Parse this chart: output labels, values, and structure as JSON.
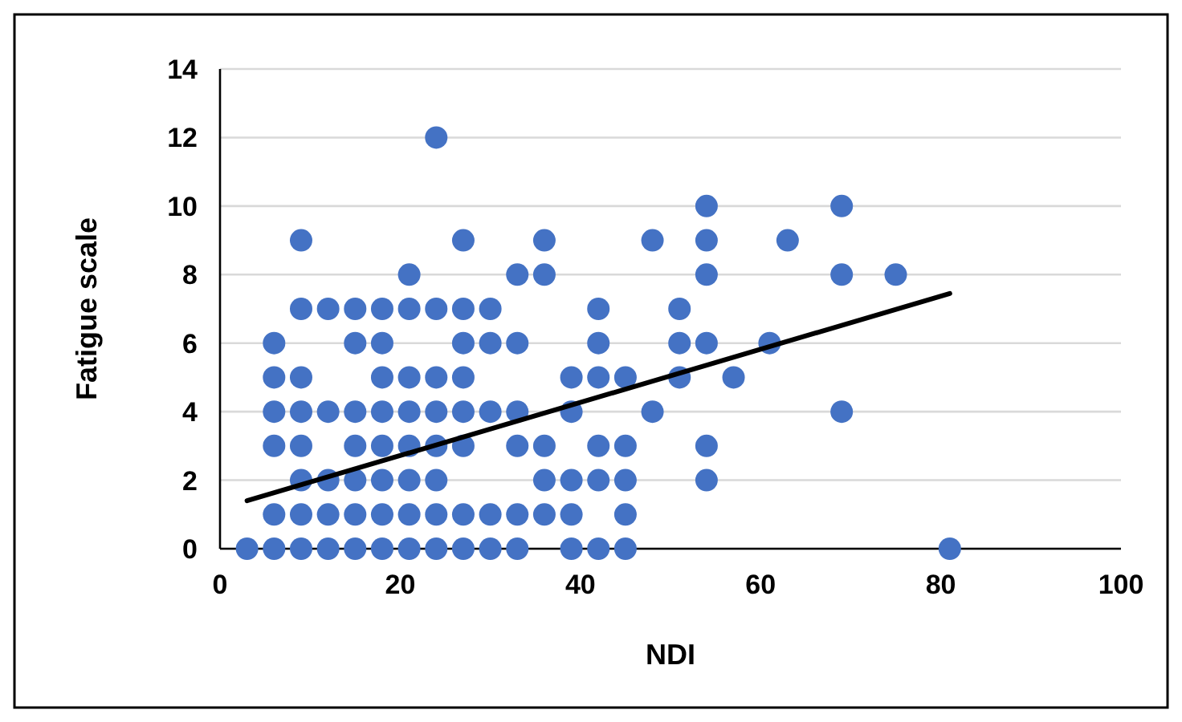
{
  "chart_data": {
    "type": "scatter",
    "xlabel": "NDI",
    "ylabel": "Fatigue scale",
    "xlim": [
      0,
      100
    ],
    "xticks": [
      0,
      20,
      40,
      60,
      80,
      100
    ],
    "ylim": [
      0,
      14
    ],
    "yticks": [
      0,
      2,
      4,
      6,
      8,
      10,
      12,
      14
    ],
    "grid": "y",
    "series": [
      {
        "marker": "circle",
        "color": "#4472c4",
        "x": [
          3,
          6,
          6,
          6,
          6,
          6,
          6,
          9,
          9,
          9,
          9,
          9,
          9,
          9,
          9,
          12,
          12,
          12,
          12,
          12,
          15,
          15,
          15,
          15,
          15,
          15,
          15,
          18,
          18,
          18,
          18,
          18,
          18,
          18,
          18,
          21,
          21,
          21,
          21,
          21,
          21,
          21,
          21,
          24,
          24,
          24,
          24,
          24,
          24,
          24,
          24,
          27,
          27,
          27,
          27,
          27,
          27,
          27,
          27,
          30,
          30,
          30,
          30,
          30,
          33,
          33,
          33,
          33,
          33,
          33,
          36,
          36,
          36,
          36,
          36,
          39,
          39,
          39,
          39,
          39,
          42,
          42,
          42,
          42,
          42,
          42,
          45,
          45,
          45,
          45,
          45,
          48,
          48,
          51,
          51,
          51,
          54,
          54,
          54,
          54,
          54,
          54,
          57,
          61,
          63,
          69,
          69,
          69,
          75,
          81
        ],
        "values": [
          0,
          0,
          1,
          3,
          4,
          5,
          6,
          0,
          1,
          2,
          3,
          4,
          5,
          7,
          9,
          0,
          1,
          2,
          4,
          7,
          0,
          1,
          2,
          3,
          4,
          6,
          7,
          0,
          1,
          2,
          3,
          4,
          5,
          6,
          7,
          0,
          1,
          2,
          3,
          4,
          5,
          7,
          8,
          0,
          1,
          2,
          3,
          4,
          5,
          7,
          12,
          0,
          1,
          3,
          4,
          5,
          6,
          7,
          9,
          0,
          1,
          4,
          6,
          7,
          0,
          1,
          3,
          4,
          6,
          8,
          1,
          2,
          3,
          8,
          9,
          0,
          1,
          2,
          4,
          5,
          0,
          2,
          3,
          5,
          6,
          7,
          0,
          1,
          2,
          3,
          5,
          4,
          9,
          5,
          6,
          7,
          2,
          3,
          6,
          8,
          9,
          10,
          5,
          6,
          9,
          4,
          8,
          10,
          8,
          0
        ]
      },
      {
        "type": "line",
        "color": "#000000",
        "x": [
          3,
          81
        ],
        "values": [
          1.4,
          7.45
        ]
      }
    ]
  }
}
